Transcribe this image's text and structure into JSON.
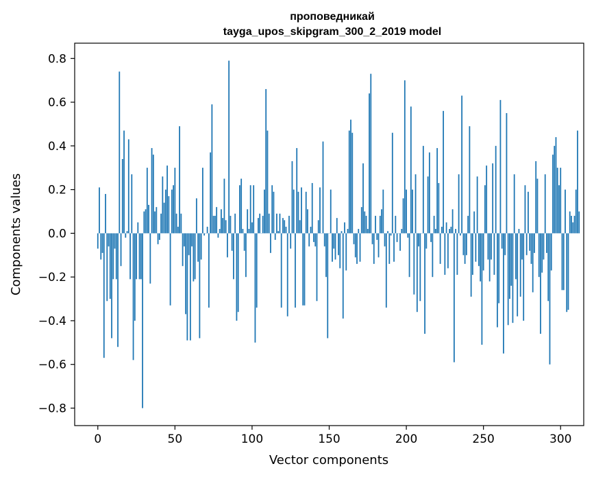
{
  "chart_data": {
    "type": "bar",
    "title": "проповедникай",
    "subtitle": "tayga_upos_skipgram_300_2_2019 model",
    "xlabel": "Vector components",
    "ylabel": "Components values",
    "xlim": [
      -15,
      315
    ],
    "ylim": [
      -0.88,
      0.87
    ],
    "xticks": [
      0,
      50,
      100,
      150,
      200,
      250,
      300
    ],
    "yticks": [
      -0.8,
      -0.6,
      -0.4,
      -0.2,
      0.0,
      0.2,
      0.4,
      0.6,
      0.8
    ],
    "ytick_labels": [
      "−0.8",
      "−0.6",
      "−0.4",
      "−0.2",
      "0.0",
      "0.2",
      "0.4",
      "0.6",
      "0.8"
    ],
    "bar_color": "#1f77b4",
    "grid": false,
    "legend": "none",
    "values": [
      -0.07,
      0.21,
      -0.12,
      -0.09,
      -0.57,
      0.18,
      -0.31,
      -0.06,
      -0.3,
      -0.48,
      -0.21,
      -0.07,
      -0.21,
      -0.52,
      0.74,
      -0.15,
      0.34,
      0.47,
      -0.02,
      0.01,
      0.43,
      -0.21,
      0.27,
      -0.58,
      -0.4,
      -0.21,
      0.05,
      -0.21,
      -0.21,
      -0.8,
      0.1,
      0.11,
      0.3,
      0.13,
      -0.23,
      0.39,
      0.36,
      0.1,
      0.12,
      -0.05,
      -0.03,
      0.09,
      0.26,
      0.14,
      0.2,
      0.31,
      0.17,
      -0.33,
      0.2,
      0.22,
      0.3,
      0.09,
      0.03,
      0.49,
      0.09,
      -0.15,
      -0.06,
      -0.37,
      -0.49,
      -0.1,
      -0.49,
      -0.06,
      -0.22,
      -0.21,
      0.16,
      -0.13,
      -0.48,
      -0.12,
      0.3,
      -0.01,
      0.0,
      0.03,
      -0.34,
      0.37,
      0.59,
      0.08,
      0.08,
      0.12,
      -0.02,
      0.02,
      0.11,
      0.07,
      0.25,
      0.06,
      -0.11,
      0.79,
      0.08,
      -0.08,
      -0.21,
      0.09,
      -0.4,
      -0.36,
      0.22,
      0.25,
      0.02,
      -0.08,
      -0.2,
      0.11,
      0.02,
      0.22,
      0.05,
      0.22,
      -0.5,
      -0.34,
      0.07,
      0.09,
      0.0,
      0.08,
      0.2,
      0.66,
      0.47,
      0.09,
      -0.09,
      0.22,
      0.19,
      -0.03,
      0.09,
      0.01,
      0.09,
      -0.34,
      0.07,
      0.06,
      0.03,
      -0.38,
      0.08,
      -0.07,
      0.33,
      0.2,
      -0.34,
      0.39,
      0.19,
      0.06,
      0.21,
      -0.33,
      -0.33,
      0.19,
      0.11,
      -0.06,
      0.03,
      0.23,
      -0.04,
      -0.06,
      -0.31,
      0.06,
      0.21,
      0.0,
      0.42,
      -0.06,
      -0.2,
      -0.48,
      0.0,
      0.2,
      -0.13,
      -0.07,
      -0.12,
      0.07,
      -0.1,
      -0.16,
      0.01,
      -0.39,
      0.05,
      -0.17,
      0.02,
      0.47,
      0.52,
      0.46,
      -0.05,
      -0.11,
      -0.14,
      0.02,
      -0.13,
      0.12,
      0.32,
      0.1,
      0.08,
      0.02,
      0.64,
      0.73,
      -0.05,
      -0.14,
      0.08,
      -0.03,
      -0.11,
      0.08,
      0.11,
      0.2,
      -0.06,
      -0.34,
      0.01,
      -0.14,
      -0.01,
      0.46,
      -0.13,
      0.08,
      -0.04,
      0.0,
      -0.08,
      0.02,
      0.16,
      0.7,
      0.2,
      -0.02,
      -0.2,
      0.58,
      0.2,
      -0.28,
      0.27,
      -0.36,
      -0.06,
      -0.31,
      0.0,
      0.4,
      -0.46,
      -0.07,
      0.26,
      0.37,
      -0.04,
      -0.2,
      0.08,
      0.02,
      0.39,
      0.23,
      -0.14,
      0.03,
      0.56,
      -0.19,
      0.05,
      -0.16,
      0.02,
      0.03,
      0.11,
      -0.59,
      0.02,
      -0.19,
      0.27,
      -0.01,
      0.63,
      -0.1,
      -0.14,
      -0.1,
      0.08,
      0.49,
      -0.29,
      -0.19,
      0.1,
      -0.13,
      0.26,
      -0.15,
      -0.22,
      -0.51,
      -0.17,
      0.22,
      0.31,
      -0.12,
      -0.22,
      -0.12,
      0.32,
      -0.19,
      0.4,
      -0.43,
      -0.32,
      0.61,
      -0.07,
      -0.55,
      -0.1,
      0.55,
      -0.42,
      -0.3,
      -0.24,
      -0.41,
      0.27,
      -0.21,
      -0.38,
      0.02,
      -0.29,
      -0.12,
      -0.4,
      0.22,
      -0.1,
      0.19,
      -0.08,
      -0.14,
      -0.27,
      -0.09,
      0.33,
      0.25,
      -0.2,
      -0.46,
      -0.18,
      -0.12,
      0.27,
      -0.09,
      -0.31,
      -0.6,
      -0.17,
      0.36,
      0.4,
      0.44,
      0.3,
      0.22,
      0.3,
      -0.26,
      -0.26,
      0.2,
      -0.36,
      -0.35,
      0.1,
      0.08,
      0.05,
      0.08,
      0.2,
      0.47,
      0.1
    ]
  }
}
